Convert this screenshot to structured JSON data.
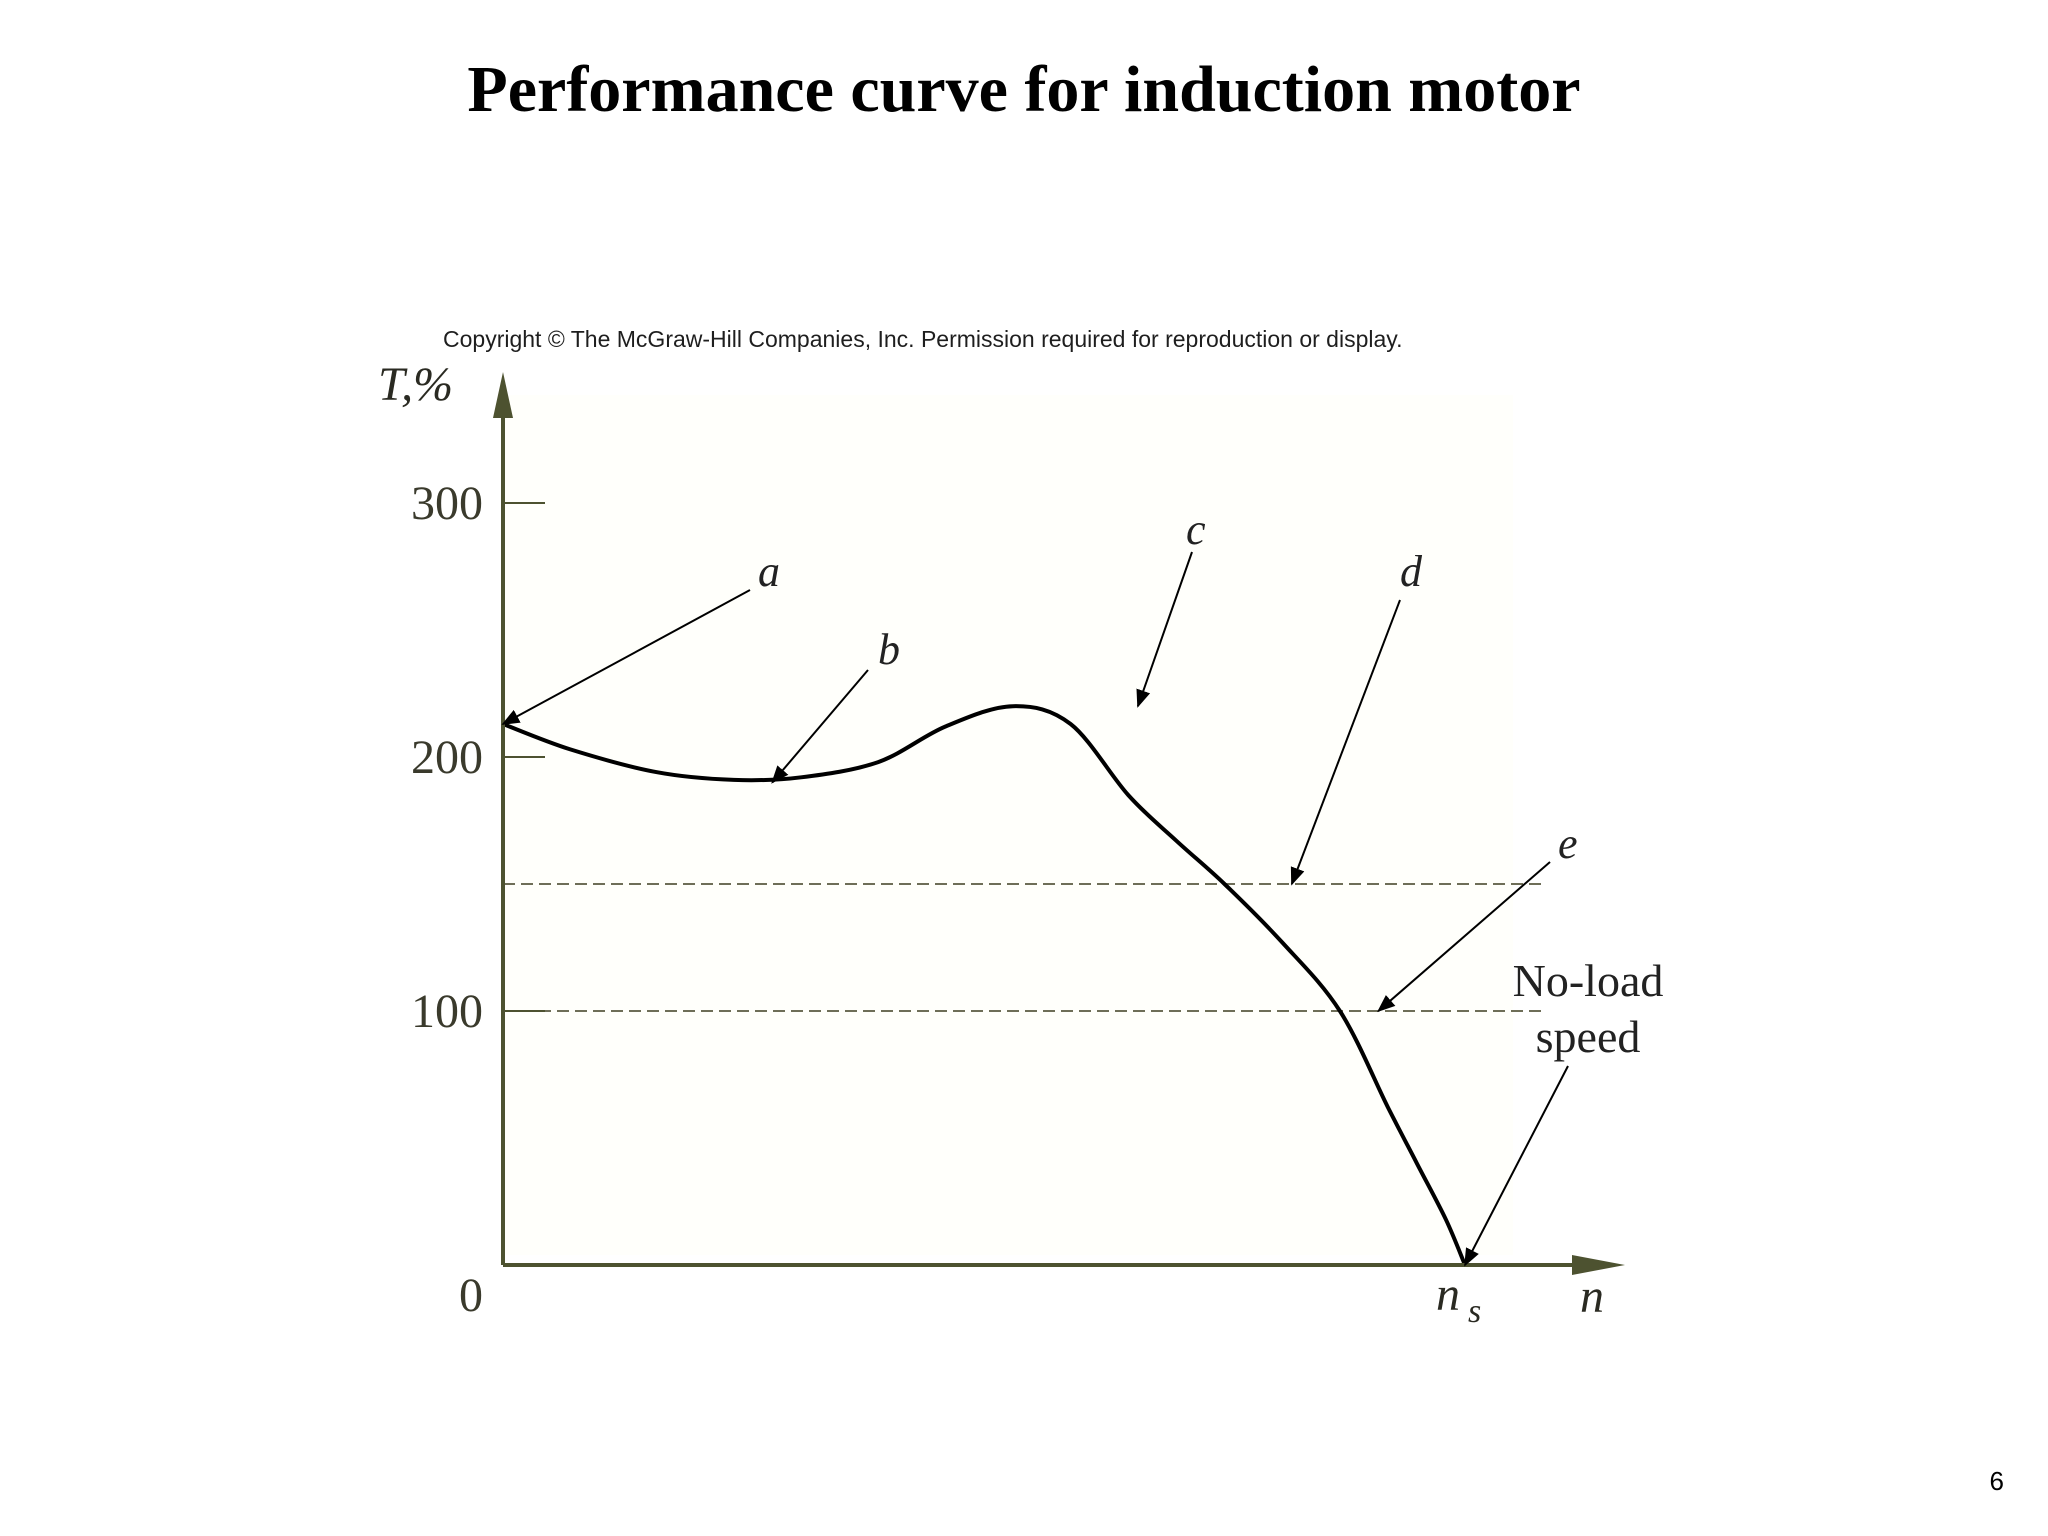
{
  "title": "Performance curve for induction motor",
  "copyright": "Copyright © The McGraw-Hill Companies, Inc. Permission required for reproduction or display.",
  "page_number": "6",
  "colors": {
    "axis": "#4d5230",
    "curve": "#000000",
    "plot_bg": "#fffffb",
    "dashed": "#6e6e58"
  },
  "chart_data": {
    "type": "line",
    "ylabel": "T,%",
    "xlabel": "n",
    "yticks": [
      0,
      100,
      200,
      300
    ],
    "ytick_labels": [
      "0",
      "100",
      "200",
      "300"
    ],
    "xtick_labels": [
      {
        "x": 100,
        "main": "n",
        "sub": "s"
      }
    ],
    "ylim": [
      0,
      340
    ],
    "xlim": [
      0,
      115
    ],
    "grid": false,
    "reference_lines": [
      {
        "y": 150,
        "x_end": 108
      },
      {
        "y": 100,
        "x_end": 108
      }
    ],
    "series": [
      {
        "x": [
          0,
          7,
          16,
          24,
          31,
          39,
          46,
          53,
          59,
          65,
          70,
          75,
          81,
          87,
          92,
          95,
          98,
          100
        ],
        "y": [
          213,
          203,
          194,
          191,
          192,
          198,
          212,
          220,
          213,
          185,
          167,
          150,
          127,
          100,
          62,
          40,
          18,
          0
        ]
      }
    ],
    "annotations": [
      {
        "label": "a",
        "x": 0,
        "y": 213
      },
      {
        "label": "b",
        "x": 28,
        "y": 190
      },
      {
        "label": "c",
        "x": 66,
        "y": 220
      },
      {
        "label": "d",
        "x": 82,
        "y": 150
      },
      {
        "label": "e",
        "x": 91,
        "y": 100
      },
      {
        "label": "No-load speed",
        "x": 100,
        "y": 0
      }
    ]
  }
}
